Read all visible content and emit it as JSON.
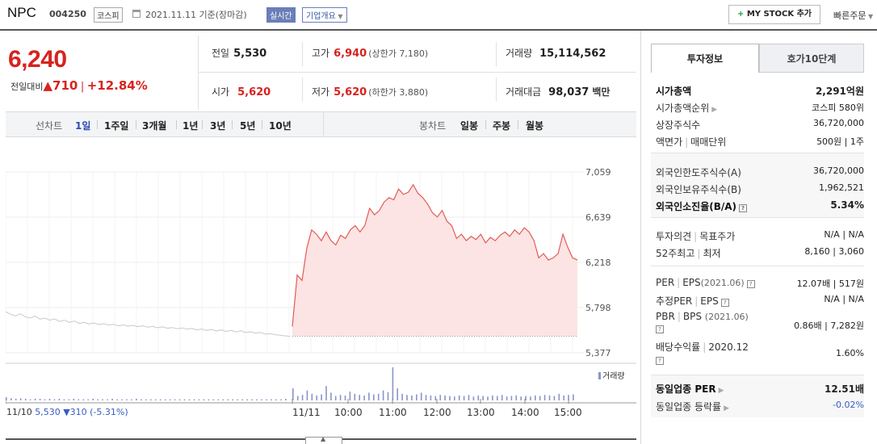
{
  "header": {
    "name": "NPC",
    "code": "004250",
    "market": "코스피",
    "date": "2021.11.11 기준(장마감)",
    "realtime": "실시간",
    "corp_info": "기업개요",
    "mystock": "MY STOCK 추가",
    "quick_order": "빠른주문"
  },
  "price": {
    "current": "6,240",
    "change_label": "전일대비",
    "change": "▲710",
    "change_pct": "+12.84%"
  },
  "summary": {
    "prev_label": "전일",
    "prev": "5,530",
    "high_label": "고가",
    "high": "6,940",
    "upper_limit": "(상한가 7,180)",
    "volume_label": "거래량",
    "volume": "15,114,562",
    "open_label": "시가",
    "open": "5,620",
    "low_label": "저가",
    "low": "5,620",
    "lower_limit": "(하한가 3,880)",
    "amount_label": "거래대금",
    "amount": "98,037",
    "amount_unit": "백만"
  },
  "periods": {
    "line_label": "선차트",
    "line_items": [
      "1일",
      "1주일",
      "3개월",
      "1년",
      "3년",
      "5년",
      "10년"
    ],
    "active": "1일",
    "candle_label": "봉차트",
    "candle_items": [
      "일봉",
      "주봉",
      "월봉"
    ]
  },
  "chart_data": {
    "type": "line",
    "y_ticks": [
      "7,059",
      "6,639",
      "6,218",
      "5,798",
      "5,377"
    ],
    "ylim": [
      5377,
      7059
    ],
    "x_ticks": [
      "11/10",
      "11/11",
      "10:00",
      "11:00",
      "12:00",
      "13:00",
      "14:00",
      "15:00"
    ],
    "prev_day_label": "11/10",
    "prev_day_close": "5,530",
    "prev_day_change": "▼310",
    "prev_day_change_pct": "(-5.31%)",
    "volume_label": "거래량",
    "colors": {
      "today_line": "#e25b55",
      "today_fill": "#fbe4e3",
      "prev_line": "#c9c9c9",
      "volume": "#8a95c9"
    },
    "prev_day_series": [
      5760,
      5735,
      5720,
      5740,
      5712,
      5700,
      5718,
      5690,
      5700,
      5680,
      5692,
      5668,
      5680,
      5660,
      5672,
      5650,
      5660,
      5645,
      5655,
      5640,
      5648,
      5635,
      5642,
      5628,
      5636,
      5625,
      5632,
      5620,
      5628,
      5615,
      5622,
      5610,
      5618,
      5605,
      5612,
      5600,
      5608,
      5596,
      5604,
      5590,
      5598,
      5585,
      5594,
      5580,
      5590,
      5575,
      5586,
      5570,
      5582,
      5565,
      5572,
      5560,
      5566,
      5550,
      5555,
      5545,
      5540,
      5535,
      5530
    ],
    "today_series": [
      5620,
      6100,
      6050,
      6350,
      6520,
      6480,
      6420,
      6500,
      6420,
      6380,
      6470,
      6440,
      6520,
      6560,
      6500,
      6560,
      6720,
      6660,
      6700,
      6780,
      6820,
      6800,
      6900,
      6850,
      6870,
      6940,
      6860,
      6820,
      6760,
      6680,
      6640,
      6700,
      6600,
      6560,
      6440,
      6480,
      6420,
      6460,
      6430,
      6480,
      6400,
      6450,
      6420,
      6470,
      6500,
      6460,
      6520,
      6480,
      6540,
      6500,
      6420,
      6260,
      6300,
      6240,
      6260,
      6300,
      6480,
      6360,
      6260,
      6240
    ],
    "today_volume": [
      22,
      8,
      10,
      18,
      12,
      9,
      11,
      26,
      14,
      8,
      10,
      9,
      16,
      12,
      10,
      9,
      14,
      11,
      12,
      18,
      15,
      60,
      22,
      12,
      10,
      9,
      11,
      14,
      10,
      9,
      8,
      10,
      9,
      8,
      7,
      9,
      8,
      10,
      7,
      9,
      8,
      7,
      9,
      8,
      10,
      7,
      8,
      9,
      7,
      8,
      7,
      9,
      8,
      10,
      9,
      8,
      12,
      9,
      10,
      11
    ],
    "prev_volume": [
      6,
      4,
      3,
      4,
      3,
      2,
      3,
      3,
      2,
      3,
      2,
      3,
      2,
      2,
      3,
      2,
      2,
      2,
      3,
      2,
      2,
      2,
      3,
      2,
      2,
      2,
      2,
      3,
      2,
      2,
      2,
      2,
      2,
      2,
      2,
      2,
      2,
      2,
      2,
      2,
      2,
      2,
      2,
      2,
      2,
      2,
      2,
      2,
      2,
      2,
      2,
      2,
      2,
      2,
      2,
      2,
      2,
      2,
      3
    ]
  },
  "panel": {
    "tab_active": "투자정보",
    "tab_inactive": "호가10단계",
    "market_cap_label": "시가총액",
    "market_cap": "2,291억원",
    "cap_rank_label": "시가총액순위",
    "cap_rank": "코스피 580위",
    "shares_label": "상장주식수",
    "shares": "36,720,000",
    "par_label": "액면가",
    "unit_label": "매매단위",
    "par_unit": "500원 | 1주",
    "foreign_limit_label": "외국인한도주식수(A)",
    "foreign_limit": "36,720,000",
    "foreign_hold_label": "외국인보유주식수(B)",
    "foreign_hold": "1,962,521",
    "foreign_ratio_label": "외국인소진율(B/A)",
    "foreign_ratio": "5.34%",
    "opinion_label": "투자의견",
    "target_label": "목표주가",
    "opinion_value": "N/A | N/A",
    "week52_label": "52주최고",
    "low_label": "최저",
    "week52_value": "8,160 | 3,060",
    "per_label": "PER",
    "eps_label": "EPS",
    "per_period": "(2021.06)",
    "per_value": "12.07배 | 517원",
    "est_per_label": "추정PER",
    "est_eps_label": "EPS",
    "est_value": "N/A | N/A",
    "pbr_label": "PBR",
    "bps_label": "BPS",
    "pbr_period": "(2021.06)",
    "pbr_value": "0.86배 | 7,282원",
    "div_label": "배당수익률",
    "div_period": "2020.12",
    "div_value": "1.60%",
    "sector_per_label": "동일업종 PER",
    "sector_per": "12.51배",
    "sector_rate_label": "동일업종 등락률",
    "sector_rate": "-0.02%"
  }
}
